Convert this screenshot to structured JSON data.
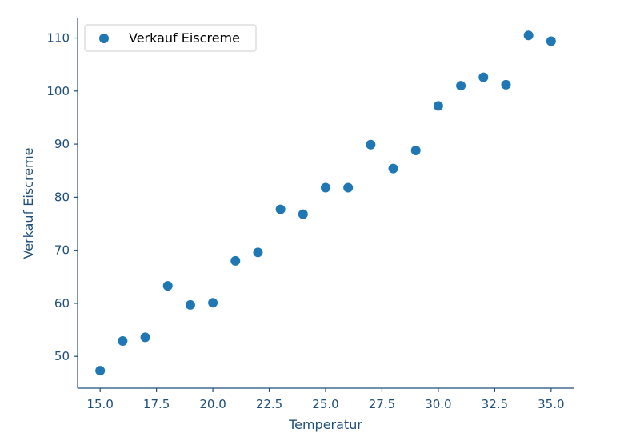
{
  "chart_data": {
    "type": "scatter",
    "title": "",
    "xlabel": "Temperatur",
    "ylabel": "Verkauf Eiscreme",
    "xlim": [
      14.0,
      36.0
    ],
    "ylim": [
      44.0,
      113.7
    ],
    "x_ticks": [
      15.0,
      17.5,
      20.0,
      22.5,
      25.0,
      27.5,
      30.0,
      32.5,
      35.0
    ],
    "x_tick_labels": [
      "15.0",
      "17.5",
      "20.0",
      "22.5",
      "25.0",
      "27.5",
      "30.0",
      "32.5",
      "35.0"
    ],
    "y_ticks": [
      50,
      60,
      70,
      80,
      90,
      100,
      110
    ],
    "y_tick_labels": [
      "50",
      "60",
      "70",
      "80",
      "90",
      "100",
      "110"
    ],
    "grid": false,
    "legend_position": "top-left",
    "series": [
      {
        "name": "Verkauf Eiscreme",
        "color": "#1f77b4",
        "points": [
          {
            "x": 15,
            "y": 47.3
          },
          {
            "x": 16,
            "y": 52.9
          },
          {
            "x": 17,
            "y": 53.6
          },
          {
            "x": 18,
            "y": 63.3
          },
          {
            "x": 19,
            "y": 59.7
          },
          {
            "x": 20,
            "y": 60.1
          },
          {
            "x": 21,
            "y": 68.0
          },
          {
            "x": 22,
            "y": 69.6
          },
          {
            "x": 23,
            "y": 77.7
          },
          {
            "x": 24,
            "y": 76.8
          },
          {
            "x": 25,
            "y": 81.8
          },
          {
            "x": 26,
            "y": 81.8
          },
          {
            "x": 27,
            "y": 89.9
          },
          {
            "x": 28,
            "y": 85.4
          },
          {
            "x": 29,
            "y": 88.8
          },
          {
            "x": 30,
            "y": 97.2
          },
          {
            "x": 31,
            "y": 101.0
          },
          {
            "x": 32,
            "y": 102.6
          },
          {
            "x": 33,
            "y": 101.2
          },
          {
            "x": 34,
            "y": 110.5
          },
          {
            "x": 35,
            "y": 109.4
          }
        ]
      }
    ]
  },
  "colors": {
    "axis": "#1f4e79",
    "marker": "#1f77b4",
    "legend_border": "#cccccc"
  }
}
